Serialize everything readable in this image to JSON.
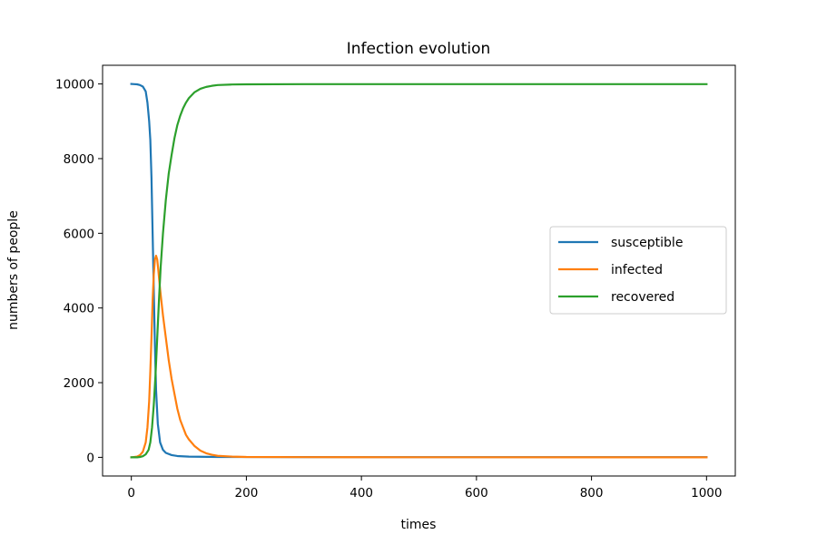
{
  "chart_data": {
    "type": "line",
    "title": "Infection evolution",
    "xlabel": "times",
    "ylabel": "numbers of people",
    "xlim": [
      -50,
      1050
    ],
    "ylim": [
      -500,
      10500
    ],
    "xticks": [
      0,
      200,
      400,
      600,
      800,
      1000
    ],
    "yticks": [
      0,
      2000,
      4000,
      6000,
      8000,
      10000
    ],
    "grid": false,
    "legend_position": "center-right",
    "series": [
      {
        "name": "susceptible",
        "color": "#1f77b4",
        "points": [
          [
            0,
            10000
          ],
          [
            5,
            9995
          ],
          [
            10,
            9990
          ],
          [
            15,
            9970
          ],
          [
            20,
            9930
          ],
          [
            25,
            9800
          ],
          [
            28,
            9500
          ],
          [
            31,
            9000
          ],
          [
            33,
            8500
          ],
          [
            35,
            7500
          ],
          [
            37,
            6000
          ],
          [
            39,
            4500
          ],
          [
            41,
            3000
          ],
          [
            43,
            1800
          ],
          [
            46,
            900
          ],
          [
            50,
            400
          ],
          [
            55,
            200
          ],
          [
            60,
            120
          ],
          [
            70,
            60
          ],
          [
            80,
            35
          ],
          [
            100,
            20
          ],
          [
            150,
            10
          ],
          [
            200,
            8
          ],
          [
            300,
            6
          ],
          [
            500,
            5
          ],
          [
            1000,
            5
          ]
        ]
      },
      {
        "name": "infected",
        "color": "#ff7f0e",
        "points": [
          [
            0,
            0
          ],
          [
            10,
            20
          ],
          [
            15,
            60
          ],
          [
            20,
            150
          ],
          [
            25,
            400
          ],
          [
            28,
            800
          ],
          [
            31,
            1500
          ],
          [
            33,
            2300
          ],
          [
            35,
            3200
          ],
          [
            37,
            4200
          ],
          [
            39,
            4900
          ],
          [
            41,
            5300
          ],
          [
            43,
            5400
          ],
          [
            45,
            5300
          ],
          [
            47,
            5000
          ],
          [
            50,
            4500
          ],
          [
            55,
            3800
          ],
          [
            60,
            3200
          ],
          [
            65,
            2600
          ],
          [
            70,
            2100
          ],
          [
            75,
            1700
          ],
          [
            80,
            1300
          ],
          [
            85,
            1000
          ],
          [
            90,
            800
          ],
          [
            95,
            600
          ],
          [
            100,
            480
          ],
          [
            110,
            300
          ],
          [
            120,
            180
          ],
          [
            130,
            110
          ],
          [
            140,
            70
          ],
          [
            150,
            40
          ],
          [
            175,
            20
          ],
          [
            200,
            10
          ],
          [
            300,
            5
          ],
          [
            500,
            3
          ],
          [
            1000,
            0
          ]
        ]
      },
      {
        "name": "recovered",
        "color": "#2ca02c",
        "points": [
          [
            0,
            0
          ],
          [
            10,
            0
          ],
          [
            15,
            10
          ],
          [
            20,
            30
          ],
          [
            25,
            80
          ],
          [
            30,
            200
          ],
          [
            33,
            400
          ],
          [
            36,
            800
          ],
          [
            39,
            1400
          ],
          [
            42,
            2200
          ],
          [
            45,
            3200
          ],
          [
            48,
            4200
          ],
          [
            51,
            5100
          ],
          [
            55,
            6000
          ],
          [
            60,
            6900
          ],
          [
            65,
            7600
          ],
          [
            70,
            8100
          ],
          [
            75,
            8550
          ],
          [
            80,
            8900
          ],
          [
            85,
            9150
          ],
          [
            90,
            9350
          ],
          [
            95,
            9500
          ],
          [
            100,
            9620
          ],
          [
            110,
            9780
          ],
          [
            120,
            9870
          ],
          [
            130,
            9920
          ],
          [
            140,
            9950
          ],
          [
            150,
            9970
          ],
          [
            175,
            9985
          ],
          [
            200,
            9990
          ],
          [
            300,
            9995
          ],
          [
            500,
            9995
          ],
          [
            1000,
            9995
          ]
        ]
      }
    ]
  }
}
